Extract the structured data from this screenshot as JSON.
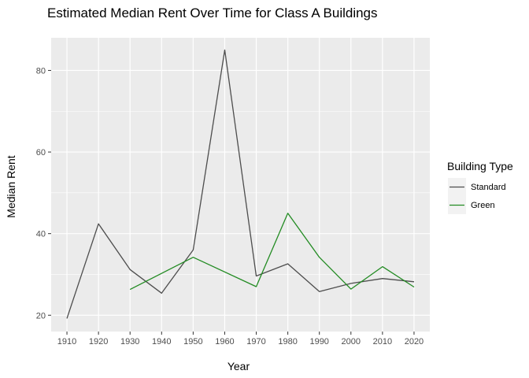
{
  "chart_data": {
    "type": "line",
    "title": "Estimated Median Rent Over Time for Class A Buildings",
    "xlabel": "Year",
    "ylabel": "Median Rent",
    "xlim": [
      1905,
      2025
    ],
    "ylim": [
      16,
      88
    ],
    "x_ticks": [
      1910,
      1920,
      1930,
      1940,
      1950,
      1960,
      1970,
      1980,
      1990,
      2000,
      2010,
      2020
    ],
    "y_ticks": [
      20,
      40,
      60,
      80
    ],
    "grid": true,
    "legend": {
      "title": "Building Type",
      "position": "right"
    },
    "series": [
      {
        "name": "Standard",
        "color": "#4d4d4d",
        "x": [
          1910,
          1920,
          1930,
          1940,
          1950,
          1960,
          1970,
          1980,
          1990,
          2000,
          2010,
          2020
        ],
        "values": [
          19.2,
          42.4,
          31.2,
          25.4,
          36.0,
          85.0,
          29.6,
          32.6,
          25.8,
          27.8,
          29.0,
          28.2
        ]
      },
      {
        "name": "Green",
        "color": "#228b22",
        "x": [
          1930,
          1950,
          1970,
          1980,
          1990,
          2000,
          2010,
          2020
        ],
        "values": [
          26.3,
          34.2,
          27.0,
          45.0,
          34.2,
          26.4,
          31.9,
          26.9
        ]
      }
    ]
  }
}
